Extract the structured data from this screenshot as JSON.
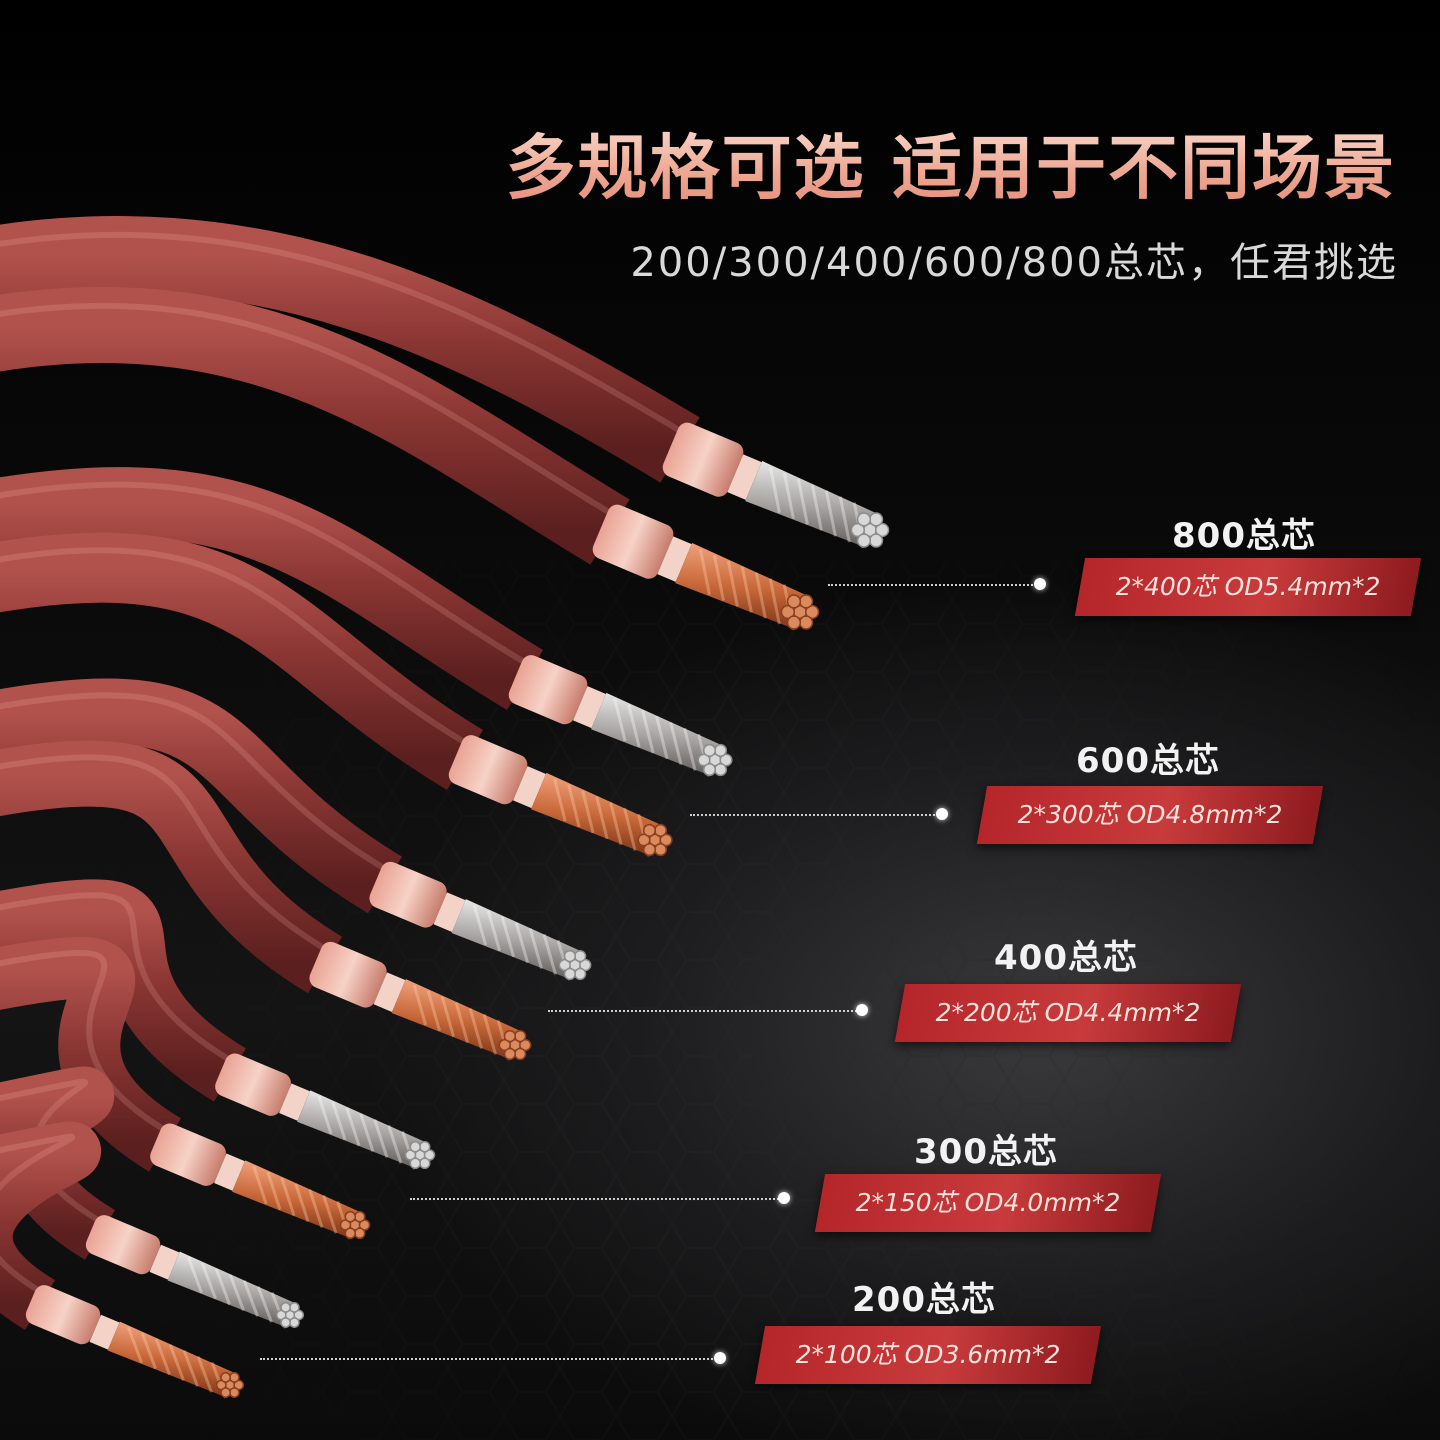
{
  "headline": "多规格可选 适用于不同场景",
  "subheadline": "200/300/400/600/800总芯，任君挑选",
  "specs": [
    {
      "total": "800总芯",
      "detail": "2*400芯  OD5.4mm*2"
    },
    {
      "total": "600总芯",
      "detail": "2*300芯  OD4.8mm*2"
    },
    {
      "total": "400总芯",
      "detail": "2*200芯  OD4.4mm*2"
    },
    {
      "total": "300总芯",
      "detail": "2*150芯  OD4.0mm*2"
    },
    {
      "total": "200总芯",
      "detail": "2*100芯  OD3.6mm*2"
    }
  ],
  "colors": {
    "jacket": "#8c3b38",
    "copper": "#c8683a",
    "silver": "#b9b7b5",
    "badge": "#c0343a",
    "headline": "#f0ad98"
  }
}
